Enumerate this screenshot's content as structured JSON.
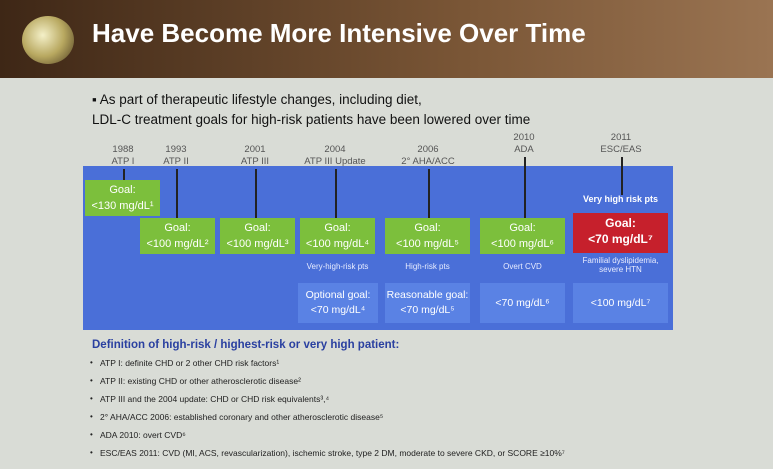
{
  "header": {
    "title": "Have Become More Intensive Over Time"
  },
  "intro": {
    "lines": [
      "As part of therapeutic lifestyle changes, including diet,",
      "LDL-C treatment goals for high-risk patients have been lowered over time"
    ]
  },
  "timeline": [
    {
      "year": "1988",
      "label": "ATP I"
    },
    {
      "year": "1993",
      "label": "ATP II"
    },
    {
      "year": "2001",
      "label": "ATP III"
    },
    {
      "year": "2004",
      "label": "ATP III Update"
    },
    {
      "year": "2006",
      "label": "2° AHA/ACC"
    },
    {
      "year": "2010",
      "label": "ADA"
    },
    {
      "year": "2011",
      "label": "ESC/EAS"
    }
  ],
  "goals": [
    {
      "label": "Goal:",
      "value": "<130 mg/dL¹"
    },
    {
      "label": "Goal:",
      "value": "<100 mg/dL²"
    },
    {
      "label": "Goal:",
      "value": "<100 mg/dL³"
    },
    {
      "label": "Goal:",
      "value": "<100 mg/dL⁴"
    },
    {
      "label": "Goal:",
      "value": "<100 mg/dL⁵"
    },
    {
      "label": "Goal:",
      "value": "<100 mg/dL⁶"
    },
    {
      "label": "Goal:",
      "value": "<70 mg/dL⁷"
    }
  ],
  "risk_groups": [
    "Very high risk pts",
    "Very-high-risk pts",
    "High-risk pts",
    "Overt CVD",
    "Familial dyslipidemia, severe HTN"
  ],
  "optional_goals": [
    {
      "label": "Optional goal:",
      "value": "<70 mg/dL⁴"
    },
    {
      "label": "Reasonable goal:",
      "value": "<70 mg/dL⁵"
    },
    {
      "label": "",
      "value": "<70 mg/dL⁶"
    },
    {
      "label": "",
      "value": "<100 mg/dL⁷"
    }
  ],
  "definitions": {
    "heading": "Definition of high-risk / highest-risk or very high patient:",
    "items": [
      "ATP I: definite CHD or 2 other CHD risk factors¹",
      "ATP II: existing CHD or other atherosclerotic disease²",
      "ATP III and the 2004 update: CHD or CHD risk equivalents³,⁴",
      "2° AHA/ACC 2006: established coronary and other atherosclerotic disease⁵",
      "ADA 2010: overt CVD⁶",
      "ESC/EAS 2011: CVD (MI, ACS, revascularization), ischemic stroke, type 2 DM, moderate to severe CKD, or SCORE ≥10%⁷"
    ]
  }
}
